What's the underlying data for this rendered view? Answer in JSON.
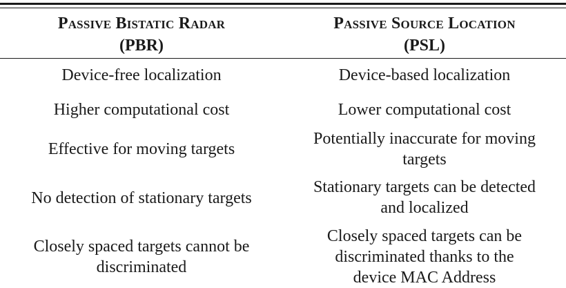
{
  "table": {
    "headers": [
      {
        "title": "Passive Bistatic Radar",
        "abbr": "(PBR)"
      },
      {
        "title": "Passive Source Location",
        "abbr": "(PSL)"
      }
    ],
    "rows": [
      {
        "pbr": [
          "Device-free localization"
        ],
        "psl": [
          "Device-based localization"
        ]
      },
      {
        "pbr": [
          "Higher computational cost"
        ],
        "psl": [
          "Lower computational cost"
        ]
      },
      {
        "pbr": [
          "Effective for moving targets"
        ],
        "psl": [
          "Potentially inaccurate for moving",
          "targets"
        ]
      },
      {
        "pbr": [
          "No detection of stationary targets"
        ],
        "psl": [
          "Stationary targets can be detected",
          "and localized"
        ]
      },
      {
        "pbr": [
          "Closely spaced targets cannot be",
          "discriminated"
        ],
        "psl": [
          "Closely spaced targets can be",
          "discriminated thanks to the",
          "device MAC Address"
        ]
      }
    ]
  }
}
